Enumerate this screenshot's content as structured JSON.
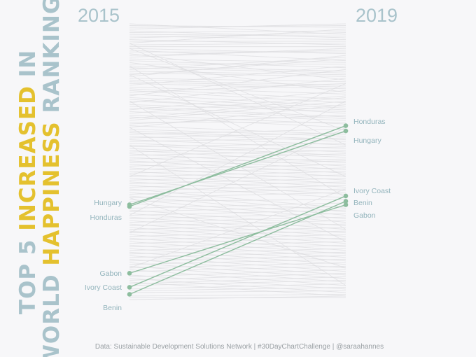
{
  "title": {
    "line1": [
      {
        "text": "TOP 5 ",
        "color": "#a9c3cb"
      },
      {
        "text": "INCREASED",
        "color": "#e4c12e"
      },
      {
        "text": " IN",
        "color": "#a9c3cb"
      }
    ],
    "line2": [
      {
        "text": "WORLD ",
        "color": "#a9c3cb"
      },
      {
        "text": "HAPPINESS",
        "color": "#e4c12e"
      },
      {
        "text": " RANKING",
        "color": "#a9c3cb"
      }
    ]
  },
  "caption": "Data: Sustainable Development Solutions Network | #30DayChartChallenge | @saraahannes",
  "colors": {
    "background": "#f7f7f9",
    "background_lines": "#dcdcdf",
    "highlight": "#8dbd9e",
    "label": "#93b4bc",
    "title_blue": "#a9c3cb",
    "title_yellow": "#e4c12e"
  },
  "chart_data": {
    "type": "slope",
    "x": [
      "2015",
      "2019"
    ],
    "y_axis": "rank (1 = happiest at top)",
    "ylim": [
      1,
      158
    ],
    "highlighted": [
      {
        "name": "Honduras",
        "rank_2015": 105,
        "rank_2019": 59
      },
      {
        "name": "Hungary",
        "rank_2015": 104,
        "rank_2019": 62
      },
      {
        "name": "Ivory Coast",
        "rank_2015": 151,
        "rank_2019": 99
      },
      {
        "name": "Benin",
        "rank_2015": 155,
        "rank_2019": 102
      },
      {
        "name": "Gabon",
        "rank_2015": 143,
        "rank_2019": 104
      }
    ],
    "label_order_2015": [
      "Hungary",
      "Honduras",
      "Gabon",
      "Ivory Coast",
      "Benin"
    ],
    "label_order_2019": [
      "Honduras",
      "Hungary",
      "Ivory Coast",
      "Benin",
      "Gabon"
    ],
    "background_pairs": [
      [
        1,
        7
      ],
      [
        2,
        3
      ],
      [
        3,
        2
      ],
      [
        4,
        1
      ],
      [
        5,
        9
      ],
      [
        6,
        5
      ],
      [
        7,
        8
      ],
      [
        8,
        10
      ],
      [
        9,
        6
      ],
      [
        10,
        13
      ],
      [
        11,
        11
      ],
      [
        12,
        4
      ],
      [
        13,
        12
      ],
      [
        14,
        14
      ],
      [
        15,
        18
      ],
      [
        16,
        22
      ],
      [
        17,
        17
      ],
      [
        18,
        33
      ],
      [
        19,
        16
      ],
      [
        20,
        15
      ],
      [
        21,
        23
      ],
      [
        22,
        26
      ],
      [
        23,
        40
      ],
      [
        24,
        24
      ],
      [
        25,
        28
      ],
      [
        26,
        29
      ],
      [
        27,
        20
      ],
      [
        28,
        30
      ],
      [
        29,
        31
      ],
      [
        30,
        21
      ],
      [
        31,
        19
      ],
      [
        32,
        34
      ],
      [
        33,
        36
      ],
      [
        34,
        37
      ],
      [
        35,
        38
      ],
      [
        36,
        25
      ],
      [
        37,
        41
      ],
      [
        38,
        44
      ],
      [
        39,
        46
      ],
      [
        40,
        35
      ],
      [
        41,
        48
      ],
      [
        42,
        27
      ],
      [
        43,
        49
      ],
      [
        44,
        52
      ],
      [
        45,
        50
      ],
      [
        46,
        32
      ],
      [
        47,
        51
      ],
      [
        48,
        54
      ],
      [
        49,
        55
      ],
      [
        50,
        39
      ],
      [
        51,
        56
      ],
      [
        52,
        42
      ],
      [
        53,
        58
      ],
      [
        54,
        60
      ],
      [
        55,
        43
      ],
      [
        56,
        45
      ],
      [
        57,
        57
      ],
      [
        58,
        53
      ],
      [
        59,
        64
      ],
      [
        60,
        47
      ],
      [
        61,
        65
      ],
      [
        62,
        67
      ],
      [
        63,
        68
      ],
      [
        64,
        61
      ],
      [
        65,
        70
      ],
      [
        66,
        63
      ],
      [
        67,
        72
      ],
      [
        68,
        66
      ],
      [
        69,
        74
      ],
      [
        70,
        76
      ],
      [
        71,
        69
      ],
      [
        72,
        77
      ],
      [
        73,
        80
      ],
      [
        74,
        71
      ],
      [
        75,
        82
      ],
      [
        76,
        73
      ],
      [
        77,
        84
      ],
      [
        78,
        75
      ],
      [
        79,
        86
      ],
      [
        80,
        78
      ],
      [
        81,
        88
      ],
      [
        82,
        79
      ],
      [
        83,
        90
      ],
      [
        84,
        81
      ],
      [
        85,
        92
      ],
      [
        86,
        83
      ],
      [
        87,
        94
      ],
      [
        88,
        85
      ],
      [
        89,
        96
      ],
      [
        90,
        87
      ],
      [
        91,
        98
      ],
      [
        92,
        89
      ],
      [
        93,
        100
      ],
      [
        94,
        91
      ],
      [
        95,
        106
      ],
      [
        96,
        93
      ],
      [
        97,
        108
      ],
      [
        98,
        95
      ],
      [
        99,
        110
      ],
      [
        100,
        97
      ],
      [
        101,
        112
      ],
      [
        102,
        101
      ],
      [
        103,
        114
      ],
      [
        106,
        103
      ],
      [
        107,
        116
      ],
      [
        108,
        105
      ],
      [
        109,
        118
      ],
      [
        110,
        107
      ],
      [
        111,
        120
      ],
      [
        112,
        109
      ],
      [
        113,
        122
      ],
      [
        114,
        111
      ],
      [
        115,
        124
      ],
      [
        116,
        113
      ],
      [
        117,
        126
      ],
      [
        118,
        115
      ],
      [
        119,
        128
      ],
      [
        120,
        117
      ],
      [
        121,
        130
      ],
      [
        122,
        119
      ],
      [
        123,
        132
      ],
      [
        124,
        121
      ],
      [
        125,
        134
      ],
      [
        126,
        123
      ],
      [
        127,
        136
      ],
      [
        128,
        125
      ],
      [
        129,
        138
      ],
      [
        130,
        127
      ],
      [
        131,
        140
      ],
      [
        132,
        129
      ],
      [
        133,
        142
      ],
      [
        134,
        131
      ],
      [
        135,
        144
      ],
      [
        136,
        133
      ],
      [
        137,
        146
      ],
      [
        138,
        135
      ],
      [
        139,
        148
      ],
      [
        140,
        137
      ],
      [
        141,
        150
      ],
      [
        142,
        139
      ],
      [
        144,
        152
      ],
      [
        145,
        141
      ],
      [
        146,
        154
      ],
      [
        147,
        143
      ],
      [
        148,
        156
      ],
      [
        149,
        145
      ],
      [
        150,
        147
      ],
      [
        152,
        149
      ],
      [
        153,
        151
      ],
      [
        154,
        153
      ],
      [
        156,
        155
      ],
      [
        157,
        157
      ],
      [
        158,
        156
      ],
      [
        15,
        62
      ],
      [
        30,
        88
      ],
      [
        12,
        70
      ],
      [
        88,
        35
      ],
      [
        120,
        60
      ],
      [
        60,
        125
      ],
      [
        25,
        100
      ],
      [
        100,
        140
      ],
      [
        140,
        95
      ],
      [
        45,
        118
      ],
      [
        70,
        150
      ],
      [
        110,
        45
      ]
    ]
  }
}
